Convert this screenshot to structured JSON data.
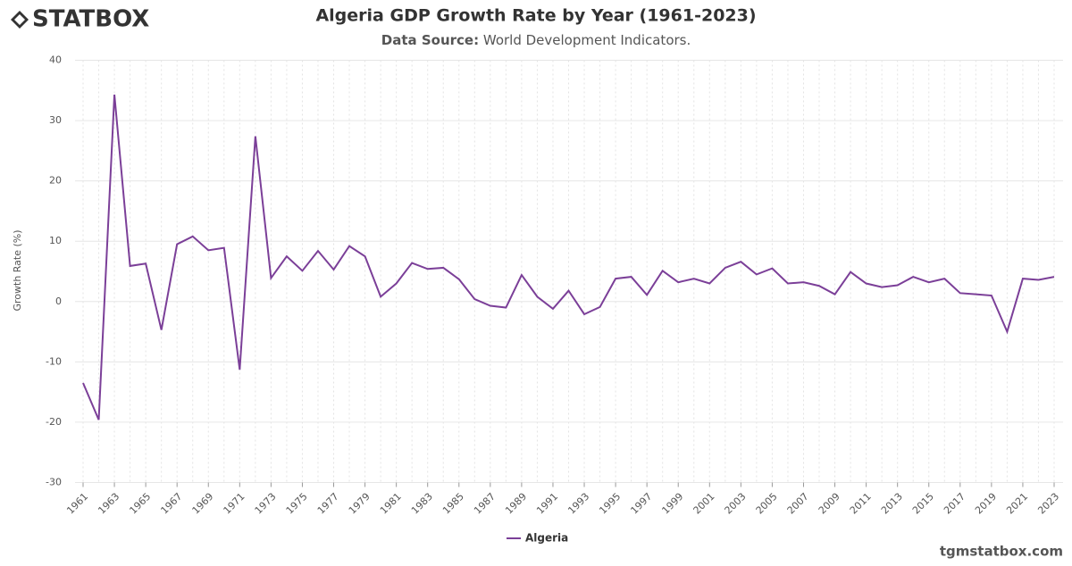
{
  "logo": "STATBOX",
  "source_label": "Data Source:",
  "source_text": "World Development Indicators.",
  "footer": "tgmstatbox.com",
  "chart_data": {
    "type": "line",
    "title": "Algeria GDP Growth Rate by Year (1961-2023)",
    "y_label": "Growth Rate (%)",
    "x": [
      1961,
      1962,
      1963,
      1964,
      1965,
      1966,
      1967,
      1968,
      1969,
      1970,
      1971,
      1972,
      1973,
      1974,
      1975,
      1976,
      1977,
      1978,
      1979,
      1980,
      1981,
      1982,
      1983,
      1984,
      1985,
      1986,
      1987,
      1988,
      1989,
      1990,
      1991,
      1992,
      1993,
      1994,
      1995,
      1996,
      1997,
      1998,
      1999,
      2000,
      2001,
      2002,
      2003,
      2004,
      2005,
      2006,
      2007,
      2008,
      2009,
      2010,
      2011,
      2012,
      2013,
      2014,
      2015,
      2016,
      2017,
      2018,
      2019,
      2020,
      2021,
      2022,
      2023
    ],
    "series": [
      {
        "name": "Algeria",
        "color": "#7b3f98",
        "values": [
          -13.5,
          -19.6,
          34.3,
          5.9,
          6.3,
          -4.7,
          9.5,
          10.8,
          8.5,
          8.9,
          -11.3,
          27.4,
          3.9,
          7.5,
          5.1,
          8.4,
          5.3,
          9.2,
          7.5,
          0.8,
          3.0,
          6.4,
          5.4,
          5.6,
          3.7,
          0.4,
          -0.7,
          -1.0,
          4.4,
          0.8,
          -1.2,
          1.8,
          -2.1,
          -0.9,
          3.8,
          4.1,
          1.1,
          5.1,
          3.2,
          3.8,
          3.0,
          5.6,
          6.6,
          4.5,
          5.5,
          3.0,
          3.2,
          2.6,
          1.2,
          4.9,
          3.0,
          2.4,
          2.7,
          4.1,
          3.2,
          3.8,
          1.4,
          1.2,
          1.0,
          -5.0,
          3.8,
          3.6,
          4.1
        ]
      }
    ],
    "xlim": [
      1961,
      2023
    ],
    "xticks": [
      1961,
      1963,
      1965,
      1967,
      1969,
      1971,
      1973,
      1975,
      1977,
      1979,
      1981,
      1983,
      1985,
      1987,
      1989,
      1991,
      1993,
      1995,
      1997,
      1999,
      2001,
      2003,
      2005,
      2007,
      2009,
      2011,
      2013,
      2015,
      2017,
      2019,
      2021,
      2023
    ],
    "ylim": [
      -30,
      40
    ],
    "yticks": [
      -30,
      -20,
      -10,
      0,
      10,
      20,
      30,
      40
    ],
    "grid": true,
    "legend": "bottom"
  }
}
